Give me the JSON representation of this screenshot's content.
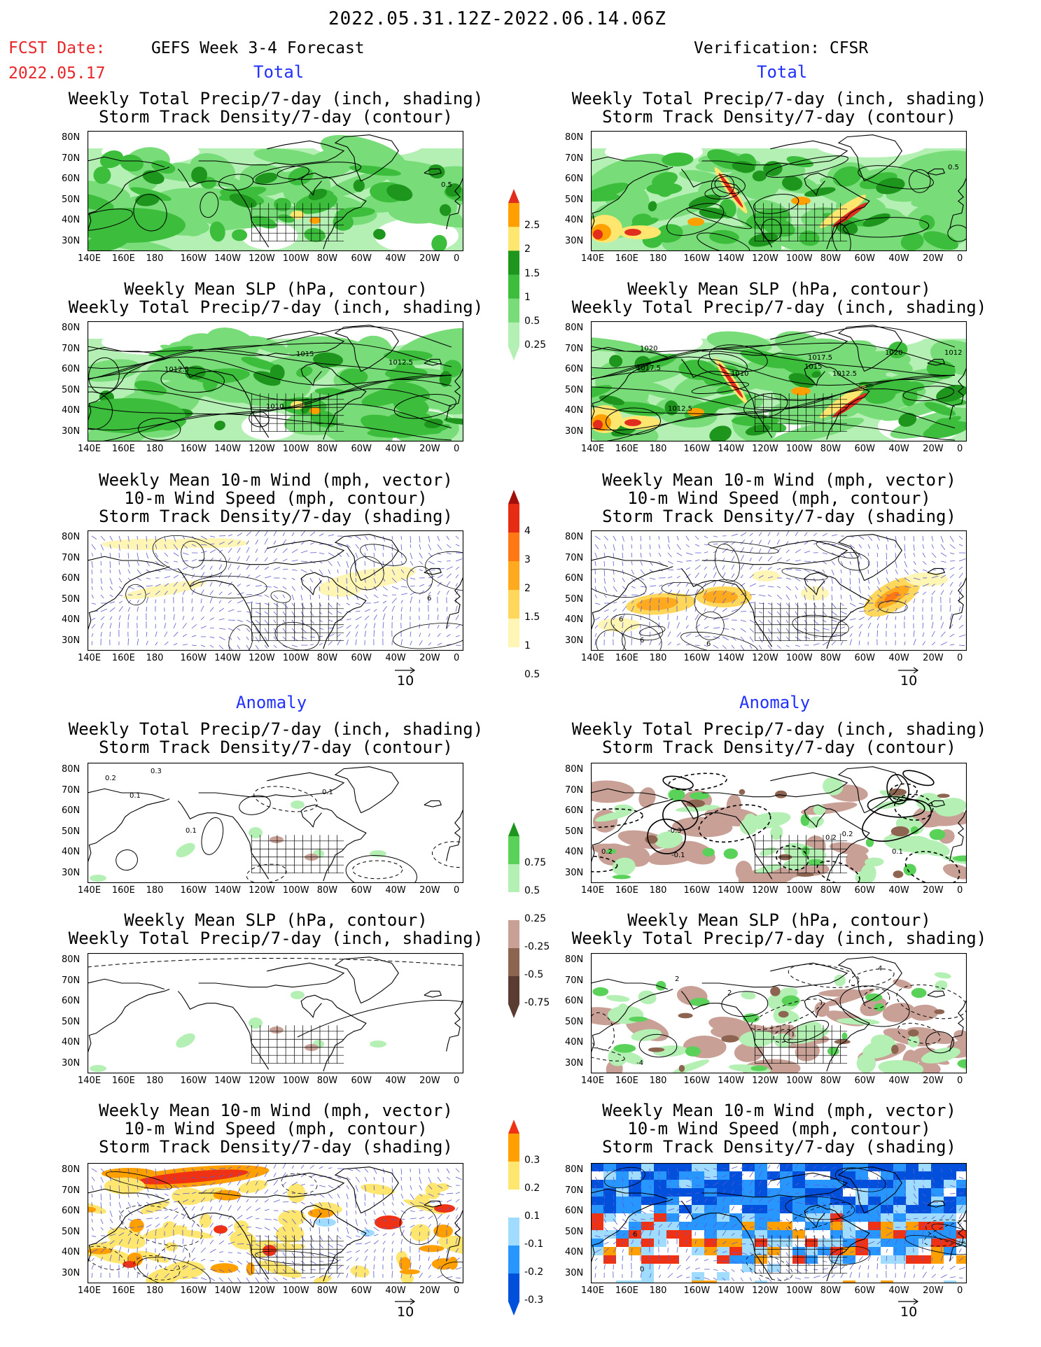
{
  "header": {
    "period": "2022.05.31.12Z-2022.06.14.06Z",
    "fcst_label": "FCST Date:",
    "fcst_date": "2022.05.17",
    "left_title": "GEFS Week 3-4 Forecast",
    "right_title": "Verification: CFSR",
    "total": "Total",
    "anomaly": "Anomaly"
  },
  "axes": {
    "lat_labels": [
      "80N",
      "70N",
      "60N",
      "50N",
      "40N",
      "30N"
    ],
    "lon_labels": [
      "140E",
      "160E",
      "180",
      "160W",
      "140W",
      "120W",
      "100W",
      "80W",
      "60W",
      "40W",
      "20W",
      "0"
    ]
  },
  "titles": {
    "precip_storm": [
      "Weekly Total Precip/7-day (inch, shading)",
      "Storm Track Density/7-day (contour)"
    ],
    "slp_precip": [
      "Weekly Mean SLP (hPa, contour)",
      "Weekly Total Precip/7-day (inch, shading)"
    ],
    "wind": [
      "Weekly Mean 10-m Wind (mph, vector)",
      "10-m Wind Speed (mph, contour)",
      "Storm Track Density/7-day (shading)"
    ]
  },
  "contour_labels": {
    "p1": [
      "0.5"
    ],
    "p2": [
      "0.5"
    ],
    "p3": [
      "1015",
      "1012.5",
      "1012.5",
      "1010"
    ],
    "p4": [
      "1020",
      "1017.5",
      "1010",
      "1017.5",
      "1015",
      "1012.5",
      "1020",
      "1012",
      "1012.5"
    ],
    "p5": [
      "6"
    ],
    "p6": [
      "6",
      "6",
      "6"
    ],
    "p7": [
      "0.2",
      "0.3",
      "0.1",
      "0.1",
      "0.1"
    ],
    "p8": [
      "0.2",
      "-0.3",
      "-0.1",
      "0.2",
      "-0.2",
      "0.1"
    ],
    "p10": [
      "4",
      "2",
      "-4",
      "2"
    ],
    "p12": [
      "6",
      "0"
    ]
  },
  "colorbars": {
    "precip_total": [
      "2.5",
      "2",
      "1.5",
      "1",
      "0.5",
      "0.25"
    ],
    "storm_total": [
      "4",
      "3",
      "2",
      "1.5",
      "1",
      "0.5"
    ],
    "precip_anom": [
      "0.75",
      "0.5",
      "0.25",
      "-0.25",
      "-0.5",
      "-0.75"
    ],
    "storm_anom": [
      "0.3",
      "0.2",
      "0.1",
      "-0.1",
      "-0.2",
      "-0.3"
    ]
  },
  "vector_ref": "10",
  "colors": {
    "precip_scale": [
      "#ffffff",
      "#b4f0b4",
      "#78dc78",
      "#3cbe3c",
      "#1e961e",
      "#ffe66e",
      "#ffa000",
      "#e12d1e"
    ],
    "storm_scale": [
      "#ffffff",
      "#fff5b4",
      "#ffd75a",
      "#ffaa1e",
      "#ff7814",
      "#e62d14",
      "#a00f0a"
    ],
    "precip_anom_scale": [
      "#5a3c32",
      "#8c6450",
      "#c8a096",
      "#ffffff",
      "#b4f0b4",
      "#5ad25a",
      "#1e961e"
    ],
    "storm_anom_scale": [
      "#0050dc",
      "#2896ff",
      "#a0dcff",
      "#ffffff",
      "#ffe66e",
      "#ffa000",
      "#f03214"
    ],
    "title_red": "#e8262a",
    "label_blue": "#2030ff",
    "wind_vector": "#5a5ad2"
  }
}
